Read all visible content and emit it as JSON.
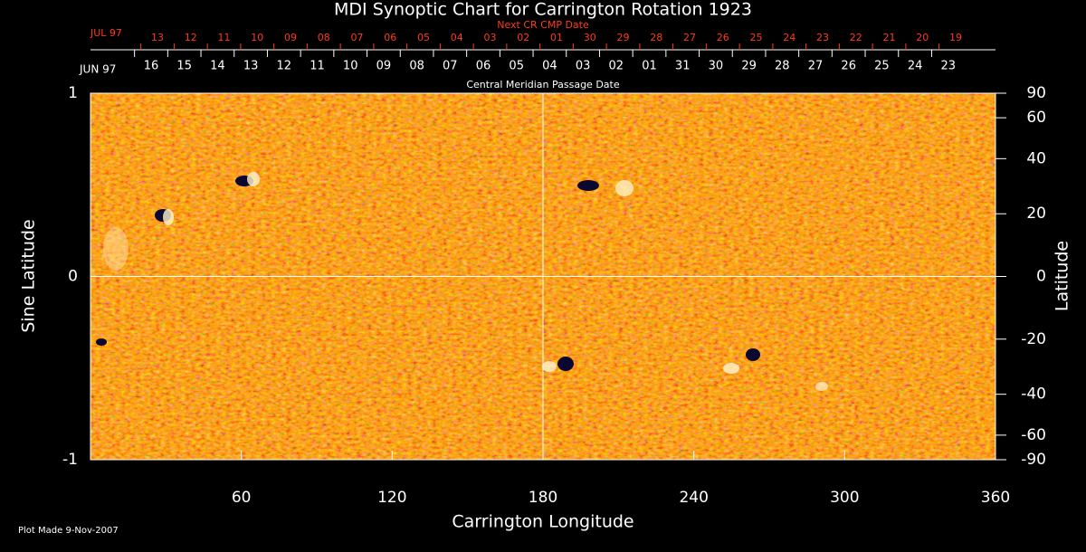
{
  "chart_data": {
    "type": "synoptic",
    "title": "MDI Synoptic Chart for Carrington Rotation 1923",
    "x_label": "Carrington Longitude",
    "y_label": "Sine Latitude",
    "y2_label": "Latitude",
    "footer": "Plot Made  9-Nov-2007",
    "xlim": [
      0,
      360
    ],
    "xticks": [
      60,
      120,
      180,
      240,
      300,
      360
    ],
    "ylim": [
      -1,
      1
    ],
    "yticks": [
      -1,
      0,
      1
    ],
    "y2lim": [
      -90,
      90
    ],
    "y2scale": "sine",
    "y2ticks": [
      90,
      60,
      40,
      20,
      0,
      -20,
      -40,
      -60,
      -90
    ],
    "x_guides": [
      180
    ],
    "y_guides": [
      0
    ],
    "cmp_dates": {
      "title": "Central Meridian Passage Date",
      "label": "JUN 97",
      "color": "#ffffff",
      "ticks": [
        "16",
        "15",
        "14",
        "13",
        "12",
        "11",
        "10",
        "09",
        "08",
        "07",
        "06",
        "05",
        "04",
        "03",
        "02",
        "01",
        "31",
        "30",
        "29",
        "28",
        "27",
        "26",
        "25",
        "24",
        "23"
      ]
    },
    "next_cmp_dates": {
      "title": "Next CR CMP Date",
      "label": "JUL 97",
      "color": "#ff3a1a",
      "ticks": [
        "13",
        "12",
        "11",
        "10",
        "09",
        "08",
        "07",
        "06",
        "05",
        "04",
        "03",
        "02",
        "01",
        "30",
        "29",
        "28",
        "27",
        "26",
        "25",
        "24",
        "23",
        "22",
        "21",
        "20",
        "19"
      ]
    }
  }
}
